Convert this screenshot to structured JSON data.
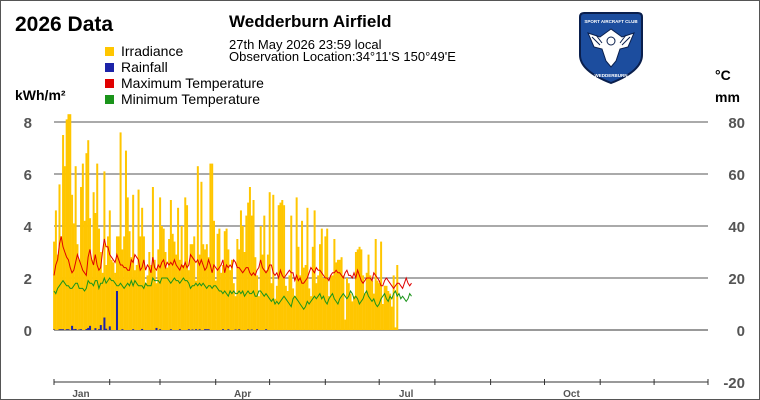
{
  "header": {
    "year_title": "2026 Data",
    "station_name": "Wedderburn Airfield",
    "observation_time": "27th May 2026  23:59 local",
    "observation_location": "Observation Location:34°11'S 150°49'E"
  },
  "logo": {
    "icon": "eagle-emblem-icon",
    "text_top": "SPORT AIRCRAFT CLUB",
    "text_bottom": "WEDDERBURN",
    "colors": {
      "fill": "#1c4d9e",
      "border": "#0a1f4d",
      "text": "#ffffff"
    }
  },
  "axes": {
    "left_unit": "kWh/m²",
    "right_unit_temp": "°C",
    "right_unit_rain": "mm"
  },
  "colors": {
    "irradiance": "#ffc600",
    "rainfall": "#1c23a8",
    "max_temp": "#e00000",
    "min_temp": "#1a941a",
    "grid": "#555555",
    "tick_text": "#555555"
  },
  "chart_data": {
    "type": "bar",
    "title": "2026 Data",
    "left_axis": {
      "label": "kWh/m²",
      "ticks": [
        "0",
        "2",
        "4",
        "6",
        "8"
      ],
      "ylim": [
        0,
        8
      ]
    },
    "right_axis": {
      "label_temp": "°C",
      "label_rain": "mm",
      "ticks": [
        "-20",
        "0",
        "20",
        "40",
        "60",
        "80"
      ],
      "ylim": [
        -20,
        80
      ]
    },
    "x_axis": {
      "range_days": [
        1,
        365
      ],
      "month_labels": [
        {
          "label": "Jan",
          "day": 1
        },
        {
          "label": "Apr",
          "day": 91
        },
        {
          "label": "Jul",
          "day": 182
        },
        {
          "label": "Oct",
          "day": 274
        }
      ]
    },
    "grid": true,
    "legend": [
      "Irradiance",
      "Rainfall",
      "Maximum Temperature",
      "Minimum Temperature"
    ],
    "series": [
      {
        "name": "Irradiance",
        "axis": "left",
        "kind": "bar",
        "values": [
          3.4,
          4.6,
          2.9,
          5.6,
          3.6,
          7.5,
          6.3,
          8.1,
          8.3,
          8.3,
          5.2,
          4.1,
          6.3,
          3.3,
          2.7,
          5.5,
          6.4,
          4.2,
          6.8,
          7.3,
          4.3,
          2.7,
          5.3,
          4.5,
          6.4,
          3.9,
          3.0,
          2.2,
          6.1,
          2.5,
          3.6,
          4.6,
          2.7,
          2.6,
          2.2,
          3.6,
          3.6,
          7.6,
          3.1,
          3.6,
          6.9,
          5.1,
          3.8,
          2.8,
          5.2,
          2.3,
          2.5,
          5.4,
          3.6,
          4.7,
          3.6,
          1.8,
          2.1,
          3.0,
          2.5,
          5.5,
          2.7,
          1.8,
          3.1,
          5.1,
          4.0,
          3.9,
          3.0,
          2.4,
          3.5,
          5.0,
          3.7,
          3.4,
          2.9,
          4.7,
          2.7,
          4.0,
          2.5,
          5.1,
          4.8,
          2.3,
          3.3,
          3.3,
          3.6,
          1.9,
          6.3,
          2.9,
          5.7,
          3.3,
          3.1,
          3.3,
          2.8,
          6.4,
          6.4,
          4.2,
          1.9,
          3.7,
          3.9,
          2.2,
          2.5,
          3.8,
          3.9,
          3.1,
          2.3,
          2.7,
          1.8,
          1.3,
          3.5,
          3.1,
          4.6,
          4.0,
          3.0,
          4.4,
          4.9,
          5.5,
          4.4,
          5.0,
          2.8,
          2.1,
          1.3,
          4.0,
          2.9,
          4.4,
          2.3,
          2.9,
          5.3,
          1.8,
          5.2,
          1.2,
          1.7,
          4.8,
          4.9,
          5.0,
          4.8,
          1.7,
          1.5,
          2.1,
          4.4,
          1.6,
          1.3,
          5.1,
          3.2,
          2.1,
          4.2,
          2.4,
          2.5,
          4.7,
          1.6,
          1.3,
          3.2,
          4.6,
          1.8,
          2.1,
          3.3,
          3.9,
          2.0,
          3.6,
          3.9,
          1.3,
          2.1,
          2.1,
          3.5,
          2.6,
          2.7,
          2.7,
          2.8,
          2.1,
          0.4,
          2.0,
          1.8,
          1.4,
          1.1,
          1.3,
          3.0,
          3.1,
          3.2,
          3.1,
          2.1,
          1.4,
          2.2,
          2.9,
          2.1,
          1.9,
          1.4,
          3.5,
          1.9,
          1.8,
          3.4,
          1.0,
          1.7,
          1.7,
          1.5,
          1.4,
          0.9,
          2.1,
          0.1,
          2.5,
          0.0
        ]
      },
      {
        "name": "Rainfall",
        "axis": "right",
        "kind": "bar",
        "values": [
          0.2,
          0.0,
          0.0,
          0.3,
          0.3,
          0.3,
          0.0,
          0.3,
          0.3,
          0.0,
          1.6,
          0.3,
          0.4,
          0.0,
          0.2,
          0.3,
          0.0,
          0.0,
          0.4,
          0.8,
          1.6,
          0.0,
          0.0,
          0.7,
          0.0,
          0.3,
          1.9,
          0.0,
          4.8,
          0.5,
          0.0,
          1.4,
          0.0,
          0.0,
          0.0,
          15.0,
          0.0,
          0.0,
          0.3,
          0.0,
          0.0,
          0.0,
          0.0,
          0.0,
          0.3,
          0.0,
          0.0,
          0.0,
          0.0,
          0.4,
          0.0,
          0.0,
          0.0,
          0.0,
          0.0,
          0.0,
          0.0,
          0.8,
          0.0,
          0.3,
          0.0,
          0.0,
          0.0,
          0.0,
          0.0,
          0.3,
          0.0,
          0.0,
          0.0,
          0.0,
          0.3,
          0.0,
          0.0,
          0.0,
          0.0,
          0.3,
          0.0,
          0.2,
          0.0,
          0.3,
          0.0,
          0.3,
          0.0,
          0.0,
          0.3,
          0.3,
          0.3,
          0.0,
          0.0,
          0.0,
          0.0,
          0.0,
          0.0,
          0.0,
          0.3,
          0.0,
          0.0,
          0.3,
          0.0,
          0.0,
          0.0,
          0.2,
          0.0,
          0.3,
          0.0,
          0.0,
          0.0,
          0.0,
          0.2,
          0.0,
          0.2,
          0.0,
          0.0,
          0.3,
          0.0,
          0.0,
          0.0,
          0.0,
          0.3,
          0.0,
          0.0,
          0.0,
          0.0,
          0.0,
          0.0,
          0.0,
          0.0,
          0.0,
          0.0,
          0.0,
          0.0,
          0.0,
          0.0,
          0.0,
          0.0,
          0.0,
          0.0,
          0.0,
          0.0,
          0.0,
          0.0,
          0.0,
          0.0,
          0.0,
          0.0,
          0.0,
          0.0,
          0.0,
          0.0,
          0.0,
          0.0,
          0.0,
          0.0,
          0.0,
          0.0,
          0.0,
          0.0,
          0.0,
          0.0,
          0.0,
          0.0,
          0.0,
          0.0,
          0.0,
          0.0,
          0.0,
          0.0,
          0.0,
          0.0,
          0.0,
          0.0,
          0.0,
          0.0,
          0.0,
          0.0,
          0.0,
          0.0,
          0.0,
          0.0,
          0.0,
          0.0,
          0.0,
          0.0,
          0.0,
          0.0,
          0.0,
          0.0,
          0.0,
          0.0,
          0.0,
          0.0,
          0.0,
          0.0,
          0.0,
          0.0,
          0.0,
          0.0,
          0.0
        ]
      },
      {
        "name": "Maximum Temperature",
        "axis": "right",
        "kind": "line",
        "values": [
          21,
          25,
          27,
          33,
          36,
          32,
          30,
          28,
          27,
          24,
          22,
          23,
          26,
          29,
          27,
          25,
          23,
          22,
          21,
          28,
          31,
          27,
          25,
          29,
          25,
          23,
          24,
          30,
          35,
          32,
          32,
          29,
          28,
          27,
          26,
          29,
          27,
          25,
          25,
          24,
          24,
          23,
          23,
          27,
          26,
          29,
          28,
          27,
          23,
          24,
          27,
          23,
          25,
          24,
          22,
          28,
          24,
          23,
          25,
          24,
          26,
          27,
          24,
          26,
          25,
          26,
          25,
          27,
          25,
          24,
          23,
          25,
          24,
          26,
          24,
          25,
          29,
          28,
          27,
          26,
          27,
          25,
          27,
          25,
          23,
          24,
          27,
          25,
          22,
          25,
          24,
          23,
          24,
          25,
          27,
          22,
          25,
          24,
          25,
          24,
          27,
          26,
          24,
          24,
          23,
          22,
          23,
          24,
          24,
          22,
          21,
          22,
          21,
          23,
          24,
          27,
          24,
          23,
          22,
          23,
          25,
          25,
          22,
          21,
          22,
          20,
          23,
          21,
          20,
          21,
          22,
          23,
          22,
          22,
          19,
          21,
          19,
          20,
          18,
          18,
          19,
          20,
          22,
          24,
          23,
          22,
          24,
          23,
          23,
          22,
          21,
          20,
          20,
          19,
          21,
          22,
          22,
          23,
          22,
          22,
          21,
          20,
          22,
          23,
          21,
          21,
          20,
          22,
          20,
          23,
          21,
          19,
          18,
          19,
          20,
          20,
          20,
          19,
          22,
          21,
          20,
          19,
          17,
          17,
          19,
          20,
          19,
          18,
          17,
          16,
          17,
          18,
          18,
          17,
          16,
          18,
          20,
          18,
          17,
          18
        ]
      },
      {
        "name": "Minimum Temperature",
        "axis": "right",
        "kind": "line",
        "values": [
          15,
          14,
          16,
          17,
          18,
          19,
          18,
          17,
          17,
          16,
          16,
          17,
          18,
          18,
          16,
          16,
          16,
          15,
          16,
          19,
          18,
          18,
          17,
          19,
          19,
          16,
          18,
          18,
          20,
          18,
          19,
          20,
          19,
          19,
          18,
          17,
          17,
          18,
          17,
          16,
          17,
          18,
          17,
          19,
          17,
          19,
          18,
          17,
          17,
          17,
          16,
          18,
          17,
          17,
          17,
          20,
          19,
          19,
          19,
          18,
          20,
          20,
          20,
          20,
          19,
          18,
          19,
          20,
          19,
          19,
          18,
          19,
          20,
          19,
          19,
          18,
          16,
          17,
          17,
          18,
          17,
          18,
          17,
          18,
          17,
          16,
          17,
          17,
          16,
          17,
          17,
          16,
          15,
          15,
          14,
          15,
          14,
          13,
          15,
          14,
          15,
          14,
          14,
          15,
          14,
          15,
          13,
          14,
          15,
          14,
          14,
          15,
          13,
          13,
          15,
          15,
          14,
          13,
          14,
          13,
          12,
          11,
          12,
          10,
          11,
          10,
          11,
          12,
          13,
          12,
          11,
          10,
          9,
          12,
          13,
          12,
          11,
          10,
          9,
          8,
          9,
          11,
          10,
          11,
          12,
          13,
          12,
          13,
          14,
          12,
          13,
          11,
          10,
          12,
          13,
          14,
          12,
          11,
          10,
          12,
          13,
          14,
          13,
          12,
          13,
          15,
          14,
          12,
          13,
          12,
          10,
          11,
          12,
          14,
          15,
          13,
          12,
          11,
          12,
          10,
          9,
          10,
          12,
          13,
          14,
          12,
          11,
          13,
          12,
          14,
          15,
          13,
          14,
          12,
          13,
          12,
          11,
          12,
          14,
          13
        ]
      }
    ]
  }
}
